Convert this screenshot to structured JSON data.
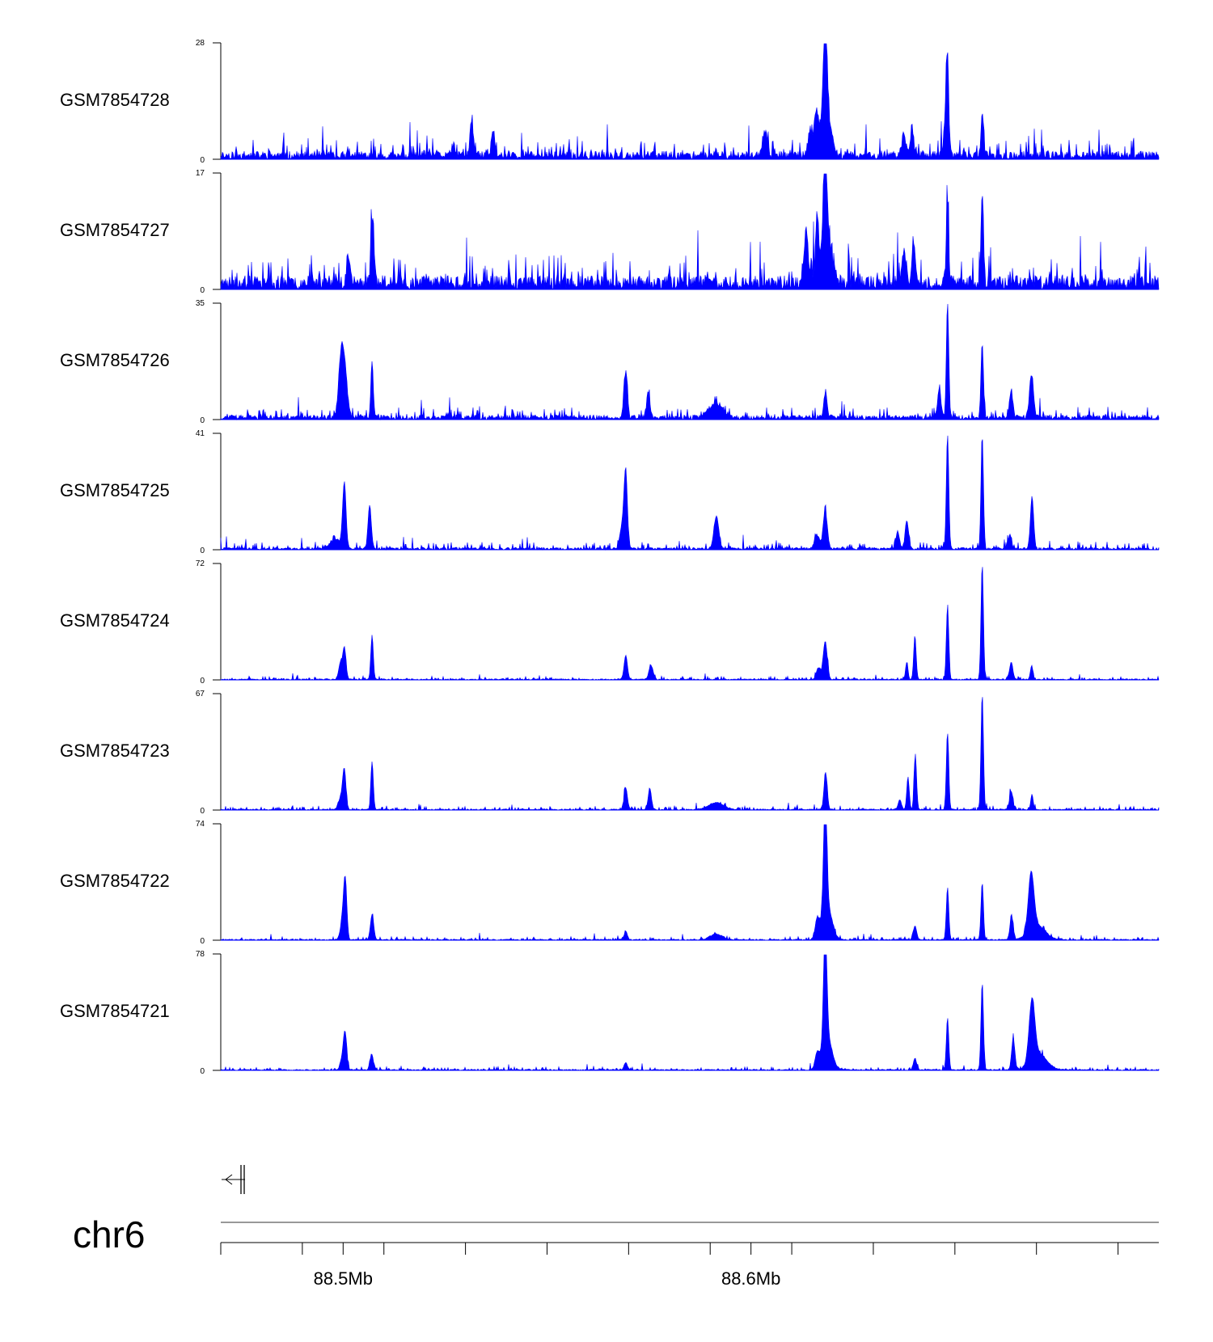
{
  "chart_data": {
    "type": "area",
    "chromosome": "chr6",
    "xlim": [
      88.47,
      88.7
    ],
    "xticks_minor": [
      88.47,
      88.49,
      88.51,
      88.53,
      88.55,
      88.57,
      88.59,
      88.61,
      88.63,
      88.65,
      88.67,
      88.69
    ],
    "xtick_labels": [
      {
        "value": 88.5,
        "label": "88.5Mb"
      },
      {
        "value": 88.6,
        "label": "88.6Mb"
      }
    ],
    "color": "#0000ff",
    "tracks": [
      {
        "name": "GSM7854728",
        "ymax": 28,
        "ymax_label": "28",
        "ymin_label": "0",
        "baseline": 0.07,
        "noise": 0.12,
        "seed": 11,
        "peaks": [
          [
            88.527,
            0.1,
            0.0004
          ],
          [
            88.5315,
            0.3,
            0.0004
          ],
          [
            88.5368,
            0.2,
            0.0004
          ],
          [
            88.6035,
            0.22,
            0.0005
          ],
          [
            88.6145,
            0.22,
            0.0005
          ],
          [
            88.616,
            0.35,
            0.0005
          ],
          [
            88.6182,
            1.0,
            0.0004
          ],
          [
            88.6183,
            0.4,
            0.0012
          ],
          [
            88.6375,
            0.18,
            0.0005
          ],
          [
            88.6395,
            0.25,
            0.0004
          ],
          [
            88.6478,
            0.33,
            0.0005
          ],
          [
            88.6482,
            0.66,
            0.0003
          ],
          [
            88.6567,
            0.38,
            0.0003
          ]
        ]
      },
      {
        "name": "GSM7854727",
        "ymax": 17,
        "ymax_label": "17",
        "ymin_label": "0",
        "baseline": 0.12,
        "noise": 0.22,
        "seed": 23,
        "peaks": [
          [
            88.5012,
            0.25,
            0.0004
          ],
          [
            88.5072,
            0.6,
            0.0004
          ],
          [
            88.6135,
            0.45,
            0.0005
          ],
          [
            88.6162,
            0.55,
            0.0004
          ],
          [
            88.6182,
            1.0,
            0.0004
          ],
          [
            88.6185,
            0.4,
            0.0012
          ],
          [
            88.6375,
            0.3,
            0.0005
          ],
          [
            88.6398,
            0.38,
            0.0004
          ],
          [
            88.6482,
            0.66,
            0.0003
          ],
          [
            88.6567,
            0.82,
            0.0003
          ]
        ]
      },
      {
        "name": "GSM7854726",
        "ymax": 35,
        "ymax_label": "35",
        "ymin_label": "0",
        "baseline": 0.04,
        "noise": 0.08,
        "seed": 37,
        "peaks": [
          [
            88.4995,
            0.52,
            0.0006
          ],
          [
            88.5005,
            0.35,
            0.0006
          ],
          [
            88.5071,
            0.47,
            0.0003
          ],
          [
            88.5693,
            0.4,
            0.0004
          ],
          [
            88.5748,
            0.22,
            0.0004
          ],
          [
            88.5915,
            0.12,
            0.0018
          ],
          [
            88.6183,
            0.23,
            0.0004
          ],
          [
            88.6462,
            0.25,
            0.0004
          ],
          [
            88.6482,
            1.0,
            0.0003
          ],
          [
            88.6567,
            0.65,
            0.0003
          ],
          [
            88.6638,
            0.24,
            0.0004
          ],
          [
            88.6688,
            0.38,
            0.0005
          ]
        ]
      },
      {
        "name": "GSM7854725",
        "ymax": 41,
        "ymax_label": "41",
        "ymin_label": "0",
        "baseline": 0.02,
        "noise": 0.05,
        "seed": 41,
        "peaks": [
          [
            88.4983,
            0.08,
            0.0015
          ],
          [
            88.5003,
            0.55,
            0.0004
          ],
          [
            88.5065,
            0.38,
            0.0004
          ],
          [
            88.5693,
            0.62,
            0.0004
          ],
          [
            88.5685,
            0.2,
            0.0006
          ],
          [
            88.5915,
            0.28,
            0.0006
          ],
          [
            88.6182,
            0.33,
            0.0005
          ],
          [
            88.6162,
            0.12,
            0.0006
          ],
          [
            88.636,
            0.15,
            0.0004
          ],
          [
            88.6382,
            0.25,
            0.0004
          ],
          [
            88.6482,
            1.0,
            0.0003
          ],
          [
            88.6567,
            0.98,
            0.0003
          ],
          [
            88.6689,
            0.45,
            0.0004
          ],
          [
            88.6635,
            0.12,
            0.0004
          ]
        ]
      },
      {
        "name": "GSM7854724",
        "ymax": 72,
        "ymax_label": "72",
        "ymin_label": "0",
        "baseline": 0.01,
        "noise": 0.025,
        "seed": 53,
        "peaks": [
          [
            88.4993,
            0.14,
            0.0004
          ],
          [
            88.5003,
            0.28,
            0.0004
          ],
          [
            88.5071,
            0.38,
            0.0003
          ],
          [
            88.5693,
            0.21,
            0.0004
          ],
          [
            88.5755,
            0.12,
            0.0005
          ],
          [
            88.6182,
            0.33,
            0.0005
          ],
          [
            88.6165,
            0.1,
            0.0005
          ],
          [
            88.6382,
            0.15,
            0.0003
          ],
          [
            88.6402,
            0.38,
            0.0003
          ],
          [
            88.6482,
            0.63,
            0.0003
          ],
          [
            88.6567,
            1.0,
            0.0003
          ],
          [
            88.6638,
            0.15,
            0.0004
          ],
          [
            88.6688,
            0.12,
            0.0003
          ]
        ]
      },
      {
        "name": "GSM7854723",
        "ymax": 67,
        "ymax_label": "67",
        "ymin_label": "0",
        "baseline": 0.01,
        "noise": 0.025,
        "seed": 61,
        "peaks": [
          [
            88.4995,
            0.1,
            0.0006
          ],
          [
            88.5003,
            0.32,
            0.0004
          ],
          [
            88.5071,
            0.42,
            0.0003
          ],
          [
            88.5693,
            0.19,
            0.0004
          ],
          [
            88.5752,
            0.18,
            0.0004
          ],
          [
            88.5915,
            0.06,
            0.0018
          ],
          [
            88.6183,
            0.32,
            0.0004
          ],
          [
            88.6365,
            0.08,
            0.0004
          ],
          [
            88.6385,
            0.28,
            0.0003
          ],
          [
            88.6403,
            0.48,
            0.0003
          ],
          [
            88.6482,
            0.66,
            0.0003
          ],
          [
            88.6567,
            1.0,
            0.0003
          ],
          [
            88.6638,
            0.16,
            0.0004
          ],
          [
            88.6689,
            0.13,
            0.0003
          ]
        ]
      },
      {
        "name": "GSM7854722",
        "ymax": 74,
        "ymax_label": "74",
        "ymin_label": "0",
        "baseline": 0.01,
        "noise": 0.025,
        "seed": 71,
        "peaks": [
          [
            88.4998,
            0.15,
            0.0005
          ],
          [
            88.5005,
            0.5,
            0.0004
          ],
          [
            88.5071,
            0.22,
            0.0004
          ],
          [
            88.5693,
            0.07,
            0.0004
          ],
          [
            88.5915,
            0.05,
            0.0015
          ],
          [
            88.6162,
            0.15,
            0.0005
          ],
          [
            88.6182,
            1.0,
            0.0004
          ],
          [
            88.6186,
            0.3,
            0.0012
          ],
          [
            88.6402,
            0.12,
            0.0004
          ],
          [
            88.6482,
            0.45,
            0.0003
          ],
          [
            88.6567,
            0.5,
            0.0003
          ],
          [
            88.6639,
            0.2,
            0.0004
          ],
          [
            88.6687,
            0.5,
            0.0007
          ],
          [
            88.6702,
            0.12,
            0.002
          ]
        ]
      },
      {
        "name": "GSM7854721",
        "ymax": 78,
        "ymax_label": "78",
        "ymin_label": "0",
        "baseline": 0.01,
        "noise": 0.025,
        "seed": 83,
        "peaks": [
          [
            88.4998,
            0.1,
            0.0005
          ],
          [
            88.5005,
            0.3,
            0.0004
          ],
          [
            88.507,
            0.14,
            0.0004
          ],
          [
            88.5693,
            0.06,
            0.0004
          ],
          [
            88.6162,
            0.12,
            0.0005
          ],
          [
            88.6182,
            1.0,
            0.0004
          ],
          [
            88.6186,
            0.3,
            0.0012
          ],
          [
            88.6402,
            0.1,
            0.0004
          ],
          [
            88.6482,
            0.45,
            0.0003
          ],
          [
            88.6567,
            0.76,
            0.0003
          ],
          [
            88.6643,
            0.27,
            0.0004
          ],
          [
            88.6689,
            0.52,
            0.0007
          ],
          [
            88.6705,
            0.14,
            0.002
          ]
        ]
      }
    ]
  }
}
